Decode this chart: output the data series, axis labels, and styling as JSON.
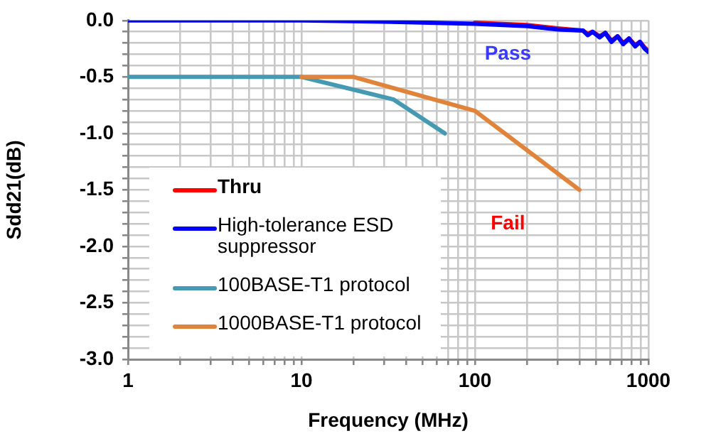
{
  "chart_data": {
    "type": "line",
    "xlabel": "Frequency (MHz)",
    "ylabel": "Sdd21(dB)",
    "log": "x",
    "grid": true,
    "legend": "bottom left",
    "marker": "none",
    "line_style": "solid",
    "xlim": [
      1,
      1000
    ],
    "ylim": [
      -3,
      0
    ],
    "xticks": [
      1,
      {
        "value": 2,
        "label": null
      },
      {
        "value": 3,
        "label": null
      },
      {
        "value": 4,
        "label": null
      },
      {
        "value": 5,
        "label": null
      },
      {
        "value": 6,
        "label": null
      },
      {
        "value": 7,
        "label": null
      },
      {
        "value": 8,
        "label": null
      },
      {
        "value": 9,
        "label": null
      },
      10,
      {
        "value": 20,
        "label": null
      },
      {
        "value": 30,
        "label": null
      },
      {
        "value": 40,
        "label": null
      },
      {
        "value": 50,
        "label": null
      },
      {
        "value": 60,
        "label": null
      },
      {
        "value": 70,
        "label": null
      },
      {
        "value": 80,
        "label": null
      },
      {
        "value": 90,
        "label": null
      },
      100,
      {
        "value": 200,
        "label": null
      },
      {
        "value": 300,
        "label": null
      },
      {
        "value": 400,
        "label": null
      },
      {
        "value": 500,
        "label": null
      },
      {
        "value": 600,
        "label": null
      },
      {
        "value": 700,
        "label": null
      },
      {
        "value": 800,
        "label": null
      },
      {
        "value": 900,
        "label": null
      },
      1000
    ],
    "yticks": [
      {
        "value": -3,
        "label": "-3.0"
      },
      {
        "value": -2.9,
        "label": null
      },
      {
        "value": -2.8,
        "label": null
      },
      {
        "value": -2.7,
        "label": null
      },
      {
        "value": -2.6,
        "label": null
      },
      {
        "value": -2.5,
        "label": "-2.5"
      },
      {
        "value": -2.4,
        "label": null
      },
      {
        "value": -2.3,
        "label": null
      },
      {
        "value": -2.2,
        "label": null
      },
      {
        "value": -2.1,
        "label": null
      },
      {
        "value": -2,
        "label": "-2.0"
      },
      {
        "value": -1.9,
        "label": null
      },
      {
        "value": -1.8,
        "label": null
      },
      {
        "value": -1.7,
        "label": null
      },
      {
        "value": -1.6,
        "label": null
      },
      {
        "value": -1.5,
        "label": "-1.5"
      },
      {
        "value": -1.4,
        "label": null
      },
      {
        "value": -1.3,
        "label": null
      },
      {
        "value": -1.2,
        "label": null
      },
      {
        "value": -1.1,
        "label": null
      },
      {
        "value": -1,
        "label": "-1.0"
      },
      {
        "value": -0.9,
        "label": null
      },
      {
        "value": -0.8,
        "label": null
      },
      {
        "value": -0.7,
        "label": null
      },
      {
        "value": -0.6,
        "label": null
      },
      {
        "value": -0.5,
        "label": "-0.5"
      },
      {
        "value": -0.4,
        "label": null
      },
      {
        "value": -0.3,
        "label": null
      },
      {
        "value": -0.2,
        "label": null
      },
      {
        "value": -0.1,
        "label": null
      },
      {
        "value": 0,
        "label": "0.0"
      }
    ],
    "annotations": [
      "Pass",
      "Fail"
    ],
    "series": [
      {
        "name": "Thru",
        "color": "#ff0000",
        "x": [
          100,
          200,
          300,
          420,
          447,
          476,
          523,
          564,
          612,
          664,
          716,
          773,
          839,
          893,
          951,
          1000
        ],
        "values": [
          -0.02,
          -0.04,
          -0.07,
          -0.09,
          -0.12,
          -0.1,
          -0.14,
          -0.11,
          -0.18,
          -0.14,
          -0.2,
          -0.16,
          -0.22,
          -0.19,
          -0.24,
          -0.27
        ]
      },
      {
        "name": "High-tolerance ESD suppressor",
        "color": "#0000ff",
        "x": [
          1,
          10,
          30,
          100,
          200,
          300,
          420,
          447,
          476,
          523,
          564,
          612,
          664,
          716,
          773,
          839,
          893,
          951,
          1000
        ],
        "values": [
          0,
          0,
          -0.01,
          -0.03,
          -0.05,
          -0.08,
          -0.09,
          -0.13,
          -0.1,
          -0.15,
          -0.11,
          -0.19,
          -0.14,
          -0.21,
          -0.16,
          -0.23,
          -0.19,
          -0.25,
          -0.28
        ]
      },
      {
        "name": "100BASE-T1 protocol",
        "color": "#4599b0",
        "x": [
          1,
          10,
          34,
          67
        ],
        "values": [
          -0.5,
          -0.5,
          -0.7,
          -1.0
        ]
      },
      {
        "name": "1000BASE-T1 protocol",
        "color": "#e0843c",
        "x": [
          10,
          20,
          100,
          400
        ],
        "values": [
          -0.5,
          -0.5,
          -0.8,
          -1.5
        ]
      }
    ]
  }
}
